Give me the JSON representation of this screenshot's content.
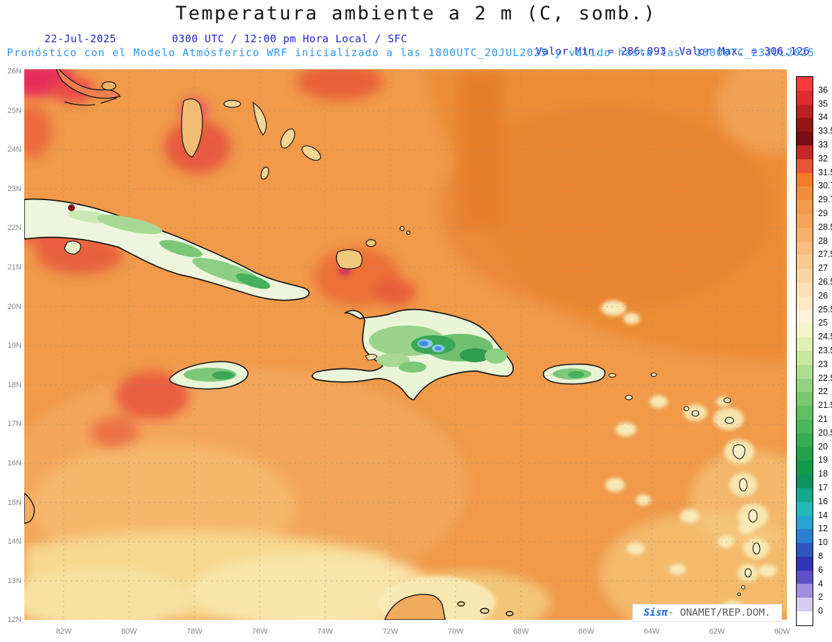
{
  "title": "Temperatura ambiente a 2 m (C, somb.)",
  "header": {
    "date": "22-Jul-2025",
    "time": "0300 UTC / 12:00 pm Hora Local / SFC",
    "valor_min": "Valor Min. = 286.093",
    "valor_max": "Valor Max. = 306.126",
    "forecast": "Pronóstico con el Modelo Atmósferico WRF inicializado a las 1800UTC_20JUL2025 y válido hasta las  1800UTC_23JUL2025"
  },
  "map": {
    "lat_labels": [
      "26N",
      "25N",
      "24N",
      "23N",
      "22N",
      "21N",
      "20N",
      "19N",
      "18N",
      "17N",
      "16N",
      "15N",
      "14N",
      "13N",
      "12N"
    ],
    "lon_labels": [
      "82W",
      "80W",
      "78W",
      "76W",
      "74W",
      "72W",
      "70W",
      "68W",
      "66W",
      "64W",
      "62W",
      "60W"
    ]
  },
  "colorbar": {
    "labels": [
      "36",
      "35",
      "34",
      "33.5",
      "33",
      "32",
      "31.5",
      "30.7",
      "29.7",
      "29",
      "28.5",
      "28",
      "27.5",
      "27",
      "26.5",
      "26",
      "25.5",
      "25",
      "24.5",
      "23.5",
      "23",
      "22.5",
      "22",
      "21.5",
      "21",
      "20.5",
      "20",
      "19",
      "18",
      "17",
      "16",
      "14",
      "12",
      "10",
      "8",
      "6",
      "4",
      "2",
      "0"
    ],
    "cell_colors": [
      "#fb3b3b",
      "#df2c2c",
      "#bd2020",
      "#971414",
      "#7a0e14",
      "#c62828",
      "#e85438",
      "#f47b28",
      "#ef8c3a",
      "#f29b4c",
      "#f4a65c",
      "#f6b16d",
      "#f8bd7f",
      "#f9c991",
      "#fbd5a3",
      "#fcdfb5",
      "#fde9c7",
      "#fef2d8",
      "#f4f4c6",
      "#e0efb3",
      "#c8e7a1",
      "#addd90",
      "#93d380",
      "#79c971",
      "#60bf64",
      "#4ab55a",
      "#35ab52",
      "#23a14c",
      "#0f9b49",
      "#08955e",
      "#12a98c",
      "#1fb9b9",
      "#27a3d1",
      "#2d7fd0",
      "#2f55c2",
      "#3134b6",
      "#5e4fc8",
      "#9f8edd",
      "#d6cdf1",
      "#ffffff"
    ]
  },
  "watermark": {
    "brand": "Sisπ",
    "text": "- ONAMET/REP.DOM."
  },
  "chart_data": {
    "type": "heatmap",
    "title": "Temperatura ambiente a 2 m (C, somb.)",
    "units": "C",
    "valor_min": 286.093,
    "valor_max": 306.126,
    "lat_range": [
      "12N",
      "26N"
    ],
    "lon_range": [
      "83W",
      "60W"
    ],
    "scale_levels": [
      0,
      2,
      4,
      6,
      8,
      10,
      12,
      14,
      16,
      17,
      18,
      19,
      20,
      20.5,
      21,
      21.5,
      22,
      22.5,
      23,
      23.5,
      24.5,
      25,
      25.5,
      26,
      26.5,
      27,
      27.5,
      28,
      28.5,
      29,
      29.7,
      30.7,
      31.5,
      32,
      33,
      33.5,
      34,
      35,
      36
    ],
    "legend_position": "right",
    "grid": "dotted"
  }
}
